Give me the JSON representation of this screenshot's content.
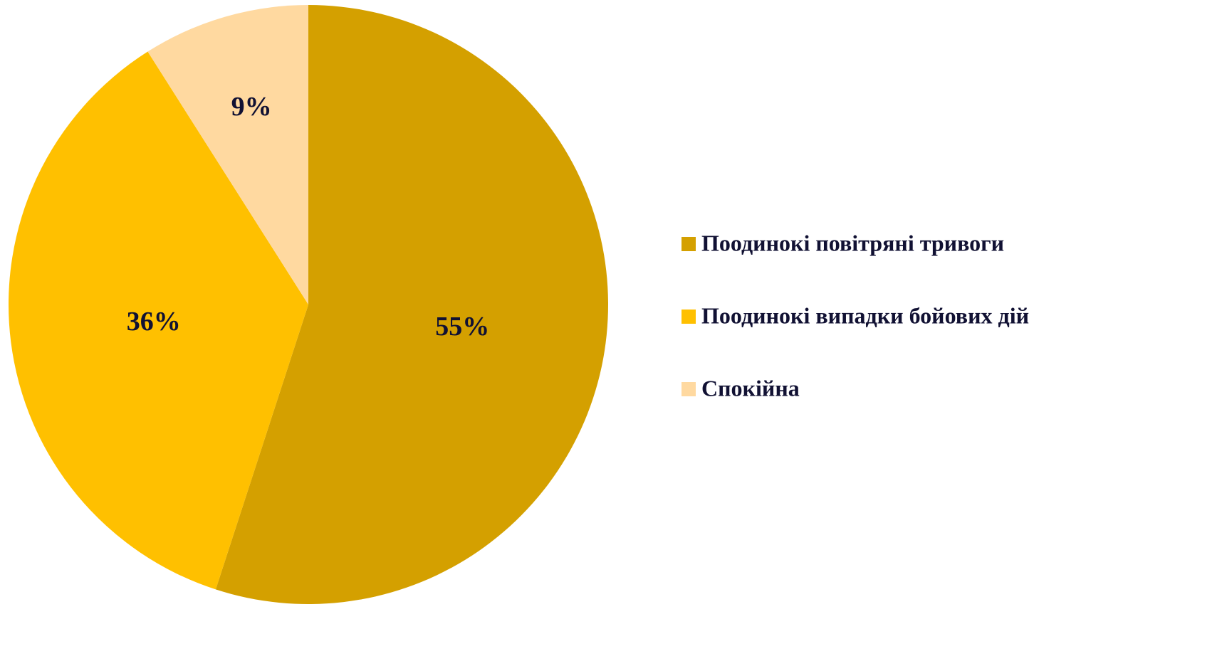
{
  "chart_data": {
    "type": "pie",
    "categories": [
      "Поодинокі повітряні тривоги",
      "Поодинокі випадки бойових дій",
      "Спокійна"
    ],
    "values": [
      55,
      36,
      9
    ],
    "value_labels": [
      "55%",
      "36%",
      "9%"
    ],
    "colors": [
      "#D4A000",
      "#FFC000",
      "#FFD9A0"
    ],
    "legend": "right"
  }
}
